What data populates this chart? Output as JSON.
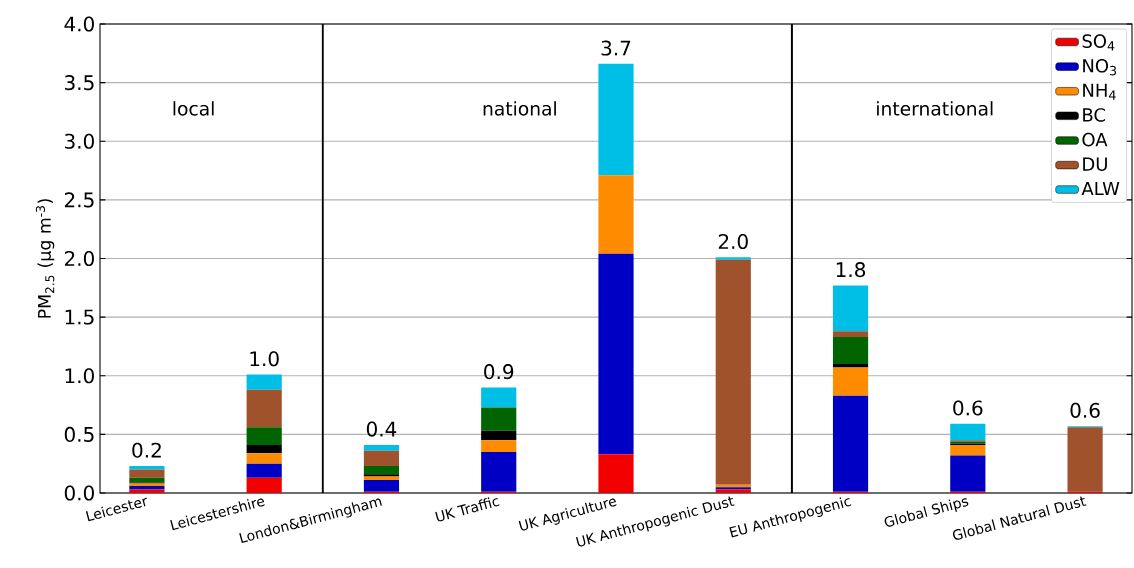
{
  "chart_data": {
    "type": "bar",
    "stacked": true,
    "ylabel": "PM$_{2.5}$ (μg m$^{-3}$)",
    "categories": [
      "Leicester",
      "Leicestershire",
      "London&Birmingham",
      "UK Traffic",
      "UK Agriculture",
      "UK Anthropogenic Dust",
      "EU Anthropogenic",
      "Global Ships",
      "Global Natural Dust"
    ],
    "series": [
      {
        "name": "SO$_{4}$",
        "color": "#f20000",
        "values": [
          0.03,
          0.13,
          0.01,
          0.01,
          0.33,
          0.03,
          0.01,
          0.01,
          0.01
        ]
      },
      {
        "name": "NO$_{3}$",
        "color": "#0000c4",
        "values": [
          0.03,
          0.12,
          0.1,
          0.34,
          1.71,
          0.02,
          0.82,
          0.31,
          0
        ]
      },
      {
        "name": "NH$_{4}$",
        "color": "#ff8c00",
        "values": [
          0.02,
          0.09,
          0.03,
          0.1,
          0.67,
          0.02,
          0.24,
          0.09,
          0
        ]
      },
      {
        "name": "BC",
        "color": "#000000",
        "values": [
          0.01,
          0.07,
          0.02,
          0.08,
          0,
          0,
          0.03,
          0.01,
          0
        ]
      },
      {
        "name": "OA",
        "color": "#006400",
        "values": [
          0.04,
          0.15,
          0.07,
          0.2,
          0,
          0,
          0.23,
          0.02,
          0
        ]
      },
      {
        "name": "DU",
        "color": "#a0522d",
        "values": [
          0.07,
          0.32,
          0.13,
          0,
          0,
          1.92,
          0.05,
          0.01,
          0.55
        ]
      },
      {
        "name": "ALW",
        "color": "#00bfe6",
        "values": [
          0.03,
          0.13,
          0.05,
          0.17,
          0.95,
          0.02,
          0.39,
          0.14,
          0.01
        ]
      }
    ],
    "totals": [
      "0.2",
      "1.0",
      "0.4",
      "0.9",
      "3.7",
      "2.0",
      "1.8",
      "0.6",
      "0.6"
    ],
    "ylim": [
      0,
      4.0
    ],
    "yticks": [
      {
        "value": 0,
        "label": "0.0"
      },
      {
        "value": 0.5,
        "label": "0.5"
      },
      {
        "value": 1,
        "label": "1.0"
      },
      {
        "value": 1.5,
        "label": "1.5"
      },
      {
        "value": 2,
        "label": "2.0"
      },
      {
        "value": 2.5,
        "label": "2.5"
      },
      {
        "value": 3,
        "label": "3.0"
      },
      {
        "value": 3.5,
        "label": "3.5"
      },
      {
        "value": 4,
        "label": "4.0"
      }
    ],
    "annotations": [
      "local",
      "national",
      "international"
    ],
    "grid": "y",
    "legend": "top right"
  }
}
